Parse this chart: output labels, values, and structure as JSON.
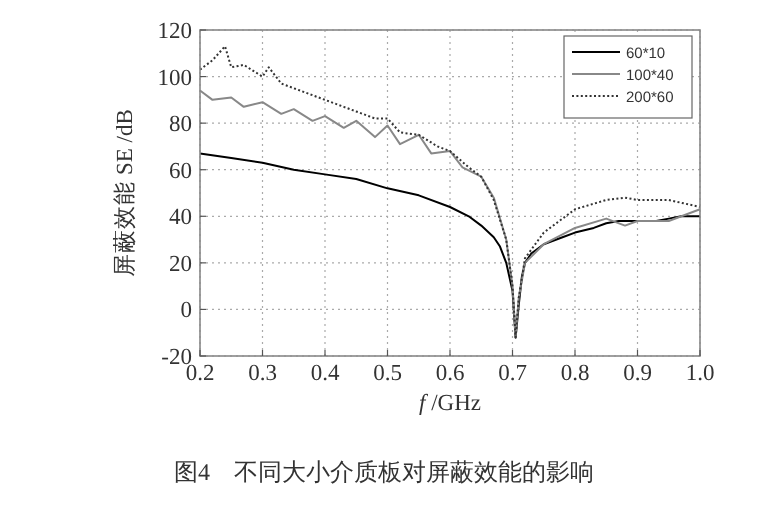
{
  "chart_data": {
    "type": "line",
    "xlabel": "*f* /GHz",
    "ylabel": "屏蔽效能 SE /dB",
    "annotations": [
      "图4　不同大小介质板对屏蔽效能的影响"
    ],
    "xlim": [
      0.2,
      1.0
    ],
    "ylim": [
      -20,
      120
    ],
    "xticks": [
      0.2,
      0.3,
      0.4,
      0.5,
      0.6,
      0.7,
      0.8,
      0.9,
      {
        "value": 1.0,
        "label": "1.0"
      }
    ],
    "yticks": [
      -20,
      0,
      20,
      40,
      60,
      80,
      100,
      120
    ],
    "grid": true,
    "legend": "top right",
    "series": [
      {
        "name": "60*10",
        "color": "#000000",
        "line_style": "solid",
        "x": [
          0.2,
          0.25,
          0.3,
          0.35,
          0.4,
          0.45,
          0.5,
          0.55,
          0.6,
          0.63,
          0.65,
          0.67,
          0.68,
          0.69,
          0.7,
          0.705,
          0.71,
          0.715,
          0.72,
          0.73,
          0.75,
          0.78,
          0.8,
          0.83,
          0.85,
          0.87,
          0.9,
          0.93,
          0.95,
          0.97,
          1.0
        ],
        "values": [
          67,
          65,
          63,
          60,
          58,
          56,
          52,
          49,
          44,
          40,
          36,
          31,
          27,
          20,
          8,
          -12,
          2,
          14,
          20,
          24,
          28,
          31,
          33,
          35,
          37,
          38,
          38,
          38,
          39,
          40,
          40
        ]
      },
      {
        "name": "100*40",
        "color": "#888888",
        "line_style": "solid",
        "x": [
          0.2,
          0.22,
          0.25,
          0.27,
          0.3,
          0.33,
          0.35,
          0.38,
          0.4,
          0.43,
          0.45,
          0.48,
          0.5,
          0.52,
          0.55,
          0.57,
          0.6,
          0.62,
          0.65,
          0.67,
          0.69,
          0.7,
          0.705,
          0.71,
          0.72,
          0.75,
          0.8,
          0.85,
          0.88,
          0.9,
          0.95,
          1.0
        ],
        "values": [
          94,
          90,
          91,
          87,
          89,
          84,
          86,
          81,
          83,
          78,
          81,
          74,
          79,
          71,
          75,
          67,
          68,
          61,
          57,
          48,
          30,
          10,
          -12,
          5,
          20,
          28,
          35,
          39,
          36,
          38,
          38,
          43
        ]
      },
      {
        "name": "200*60",
        "color": "#333333",
        "line_style": "dotted",
        "x": [
          0.2,
          0.22,
          0.24,
          0.25,
          0.27,
          0.3,
          0.31,
          0.33,
          0.35,
          0.38,
          0.4,
          0.43,
          0.45,
          0.48,
          0.5,
          0.52,
          0.55,
          0.58,
          0.6,
          0.63,
          0.65,
          0.67,
          0.69,
          0.7,
          0.705,
          0.71,
          0.72,
          0.75,
          0.8,
          0.85,
          0.88,
          0.9,
          0.95,
          1.0
        ],
        "values": [
          103,
          107,
          113,
          104,
          105,
          100,
          104,
          97,
          95,
          92,
          90,
          87,
          85,
          82,
          82,
          76,
          75,
          70,
          68,
          61,
          57,
          47,
          30,
          10,
          -12,
          5,
          22,
          33,
          43,
          47,
          48,
          47,
          47,
          44
        ]
      }
    ]
  }
}
